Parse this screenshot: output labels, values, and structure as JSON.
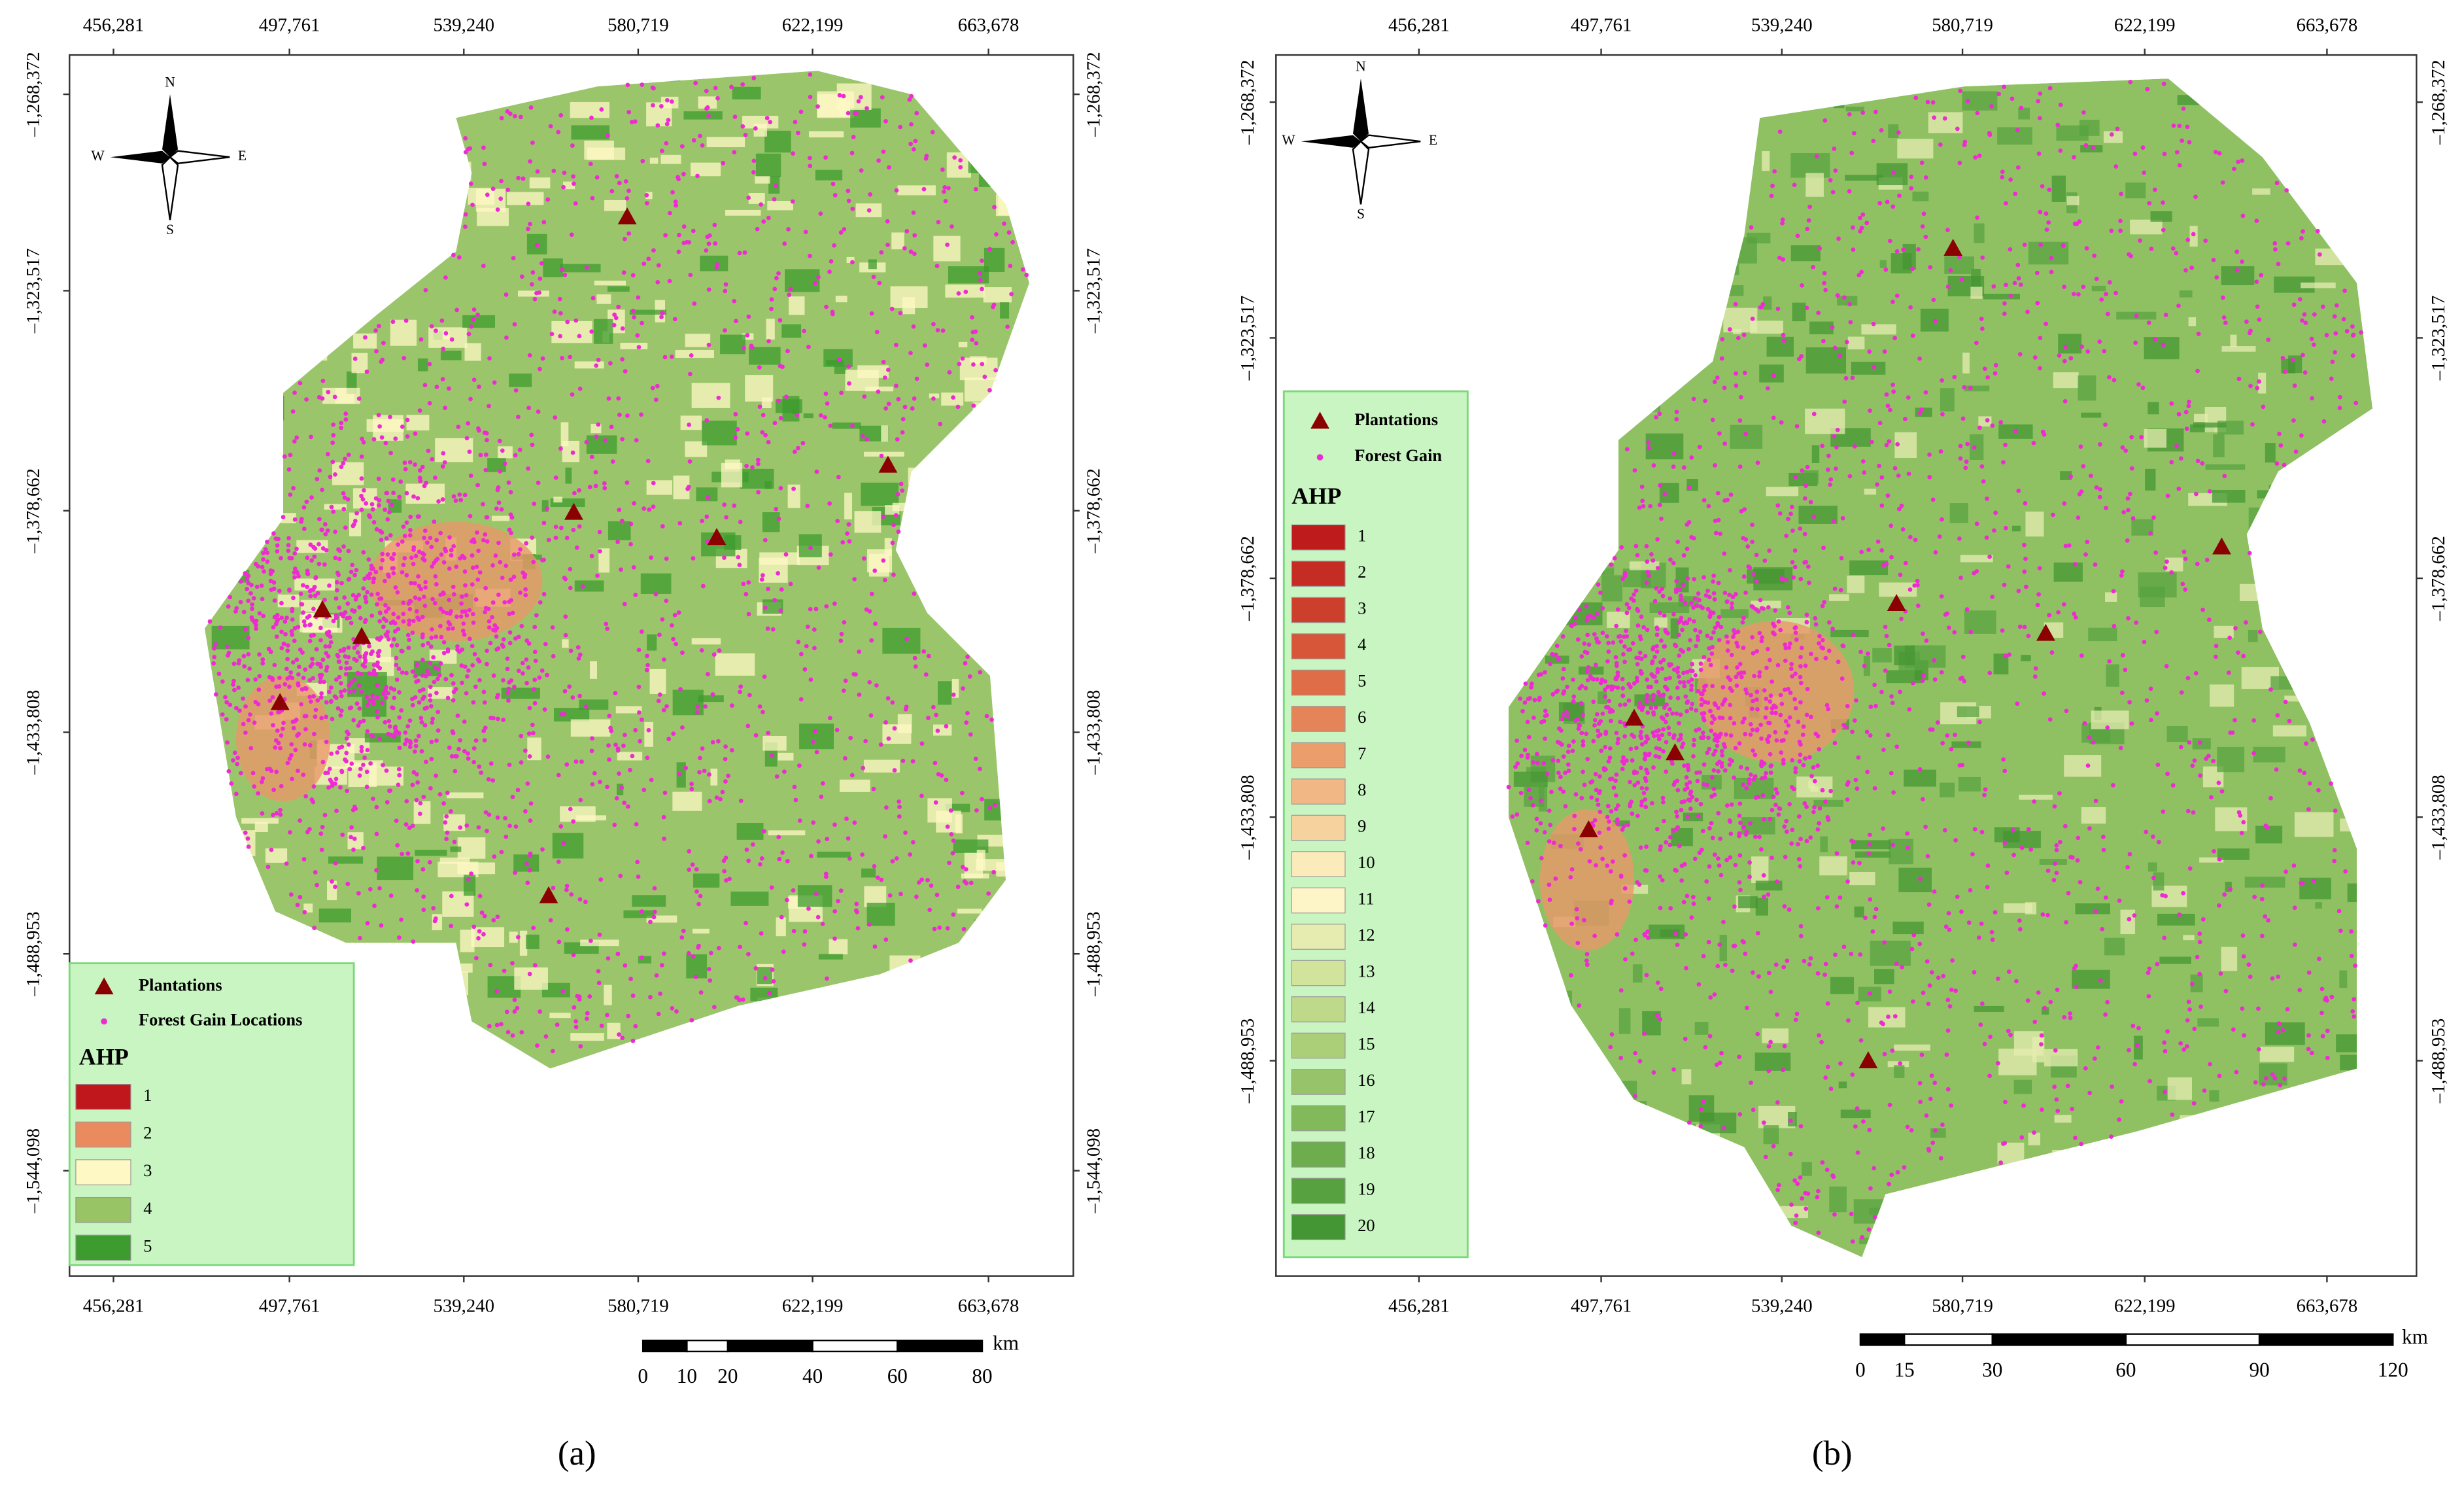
{
  "panels": [
    {
      "caption": "(a)",
      "x_ticks": [
        "456,281",
        "497,761",
        "539,240",
        "580,719",
        "622,199",
        "663,678"
      ],
      "y_ticks": [
        "–1,268,372",
        "–1,323,517",
        "–1,378,662",
        "–1,433,808",
        "–1,488,953",
        "–1,544,098"
      ],
      "compass": {
        "n": "N",
        "s": "S",
        "e": "E",
        "w": "W"
      },
      "legend": {
        "plantations": "Plantations",
        "forest_gain": "Forest Gain Locations",
        "title": "AHP",
        "classes": [
          {
            "label": "1",
            "color": "#c0171c"
          },
          {
            "label": "2",
            "color": "#e98a5f"
          },
          {
            "label": "3",
            "color": "#fdf8c4"
          },
          {
            "label": "4",
            "color": "#99c466"
          },
          {
            "label": "5",
            "color": "#3e9b2f"
          }
        ]
      },
      "scale_bar": {
        "labels": [
          "0",
          "10",
          "20",
          "40",
          "60",
          "80"
        ],
        "unit": "km"
      }
    },
    {
      "caption": "(b)",
      "x_ticks": [
        "456,281",
        "497,761",
        "539,240",
        "580,719",
        "622,199",
        "663,678"
      ],
      "y_ticks": [
        "–1,268,372",
        "–1,323,517",
        "–1,378,662",
        "–1,433,808",
        "–1,488,953"
      ],
      "compass": {
        "n": "N",
        "s": "S",
        "e": "E",
        "w": "W"
      },
      "legend": {
        "plantations": "Plantations",
        "forest_gain": "Forest Gain",
        "title": "AHP",
        "classes": [
          {
            "label": "1",
            "color": "#be1b1d"
          },
          {
            "label": "2",
            "color": "#c52c24"
          },
          {
            "label": "3",
            "color": "#cd3f2d"
          },
          {
            "label": "4",
            "color": "#d75539"
          },
          {
            "label": "5",
            "color": "#df6d47"
          },
          {
            "label": "6",
            "color": "#e58458"
          },
          {
            "label": "7",
            "color": "#eb9e6c"
          },
          {
            "label": "8",
            "color": "#f1b885"
          },
          {
            "label": "9",
            "color": "#f6d39e"
          },
          {
            "label": "10",
            "color": "#fbeaba"
          },
          {
            "label": "11",
            "color": "#fdf4c8"
          },
          {
            "label": "12",
            "color": "#e6ecb0"
          },
          {
            "label": "13",
            "color": "#d2e39c"
          },
          {
            "label": "14",
            "color": "#bfd98a"
          },
          {
            "label": "15",
            "color": "#abcf79"
          },
          {
            "label": "16",
            "color": "#97c46a"
          },
          {
            "label": "17",
            "color": "#82b95b"
          },
          {
            "label": "18",
            "color": "#6dad4d"
          },
          {
            "label": "19",
            "color": "#58a140"
          },
          {
            "label": "20",
            "color": "#449533"
          }
        ]
      },
      "scale_bar": {
        "labels": [
          "0",
          "15",
          "30",
          "60",
          "90",
          "120"
        ],
        "unit": "km"
      }
    }
  ]
}
